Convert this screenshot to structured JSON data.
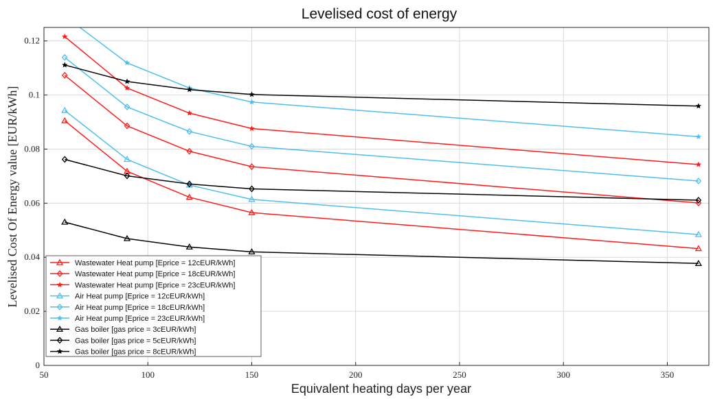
{
  "chart_data": {
    "type": "line",
    "title": "Levelised cost of energy",
    "xlabel": "Equivalent heating days per year",
    "ylabel": "Levelised Cost Of Energy value [EUR/kWh]",
    "xlim": [
      50,
      370
    ],
    "ylim": [
      0,
      0.125
    ],
    "xticks": [
      50,
      100,
      150,
      200,
      250,
      300,
      350
    ],
    "yticks": [
      0,
      0.02,
      0.04,
      0.06,
      0.08,
      0.1,
      0.12
    ],
    "xtick_labels": [
      "50",
      "100",
      "150",
      "200",
      "250",
      "300",
      "350"
    ],
    "ytick_labels": [
      "0",
      "0.02",
      "0.04",
      "0.06",
      "0.08",
      "0.1",
      "0.12"
    ],
    "grid": true,
    "legend_position": "bottom-left",
    "x": [
      60,
      90,
      120,
      150,
      365
    ],
    "series": [
      {
        "name": "Wastewater Heat pump [Eprice = 12cEUR/kWh]",
        "color": "#ff1a1a",
        "marker": "triangle",
        "values": [
          0.0905,
          0.0718,
          0.0622,
          0.0565,
          0.0432
        ]
      },
      {
        "name": "Wastewater Heat pump [Eprice = 18cEUR/kWh]",
        "color": "#ff1a1a",
        "marker": "diamond",
        "values": [
          0.1073,
          0.0886,
          0.0792,
          0.0735,
          0.0601
        ]
      },
      {
        "name": "Wastewater Heat pump [Eprice = 23cEUR/kWh]",
        "color": "#ff1a1a",
        "marker": "star",
        "values": [
          0.1216,
          0.1026,
          0.0933,
          0.0876,
          0.0743
        ]
      },
      {
        "name": "Air Heat pump [Eprice = 12cEUR/kWh]",
        "color": "#4dbeee",
        "marker": "triangle",
        "values": [
          0.0943,
          0.0762,
          0.0667,
          0.0614,
          0.0484
        ]
      },
      {
        "name": "Air Heat pump [Eprice = 18cEUR/kWh]",
        "color": "#4dbeee",
        "marker": "diamond",
        "values": [
          0.1139,
          0.0956,
          0.0865,
          0.081,
          0.0682
        ]
      },
      {
        "name": "Air Heat pump [Eprice = 23cEUR/kWh]",
        "color": "#4dbeee",
        "marker": "star",
        "values": [
          0.1292,
          0.1119,
          0.1026,
          0.0974,
          0.0846
        ]
      },
      {
        "name": "Gas boiler [gas price = 3cEUR/kWh]",
        "color": "#000000",
        "marker": "triangle",
        "values": [
          0.053,
          0.0469,
          0.0438,
          0.042,
          0.0377
        ]
      },
      {
        "name": "Gas boiler [gas price = 5cEUR/kWh]",
        "color": "#000000",
        "marker": "diamond",
        "values": [
          0.0762,
          0.0701,
          0.0671,
          0.0653,
          0.0611
        ]
      },
      {
        "name": "Gas boiler [gas price = 8cEUR/kWh]",
        "color": "#000000",
        "marker": "star",
        "values": [
          0.1111,
          0.105,
          0.102,
          0.1002,
          0.0959
        ]
      }
    ]
  }
}
